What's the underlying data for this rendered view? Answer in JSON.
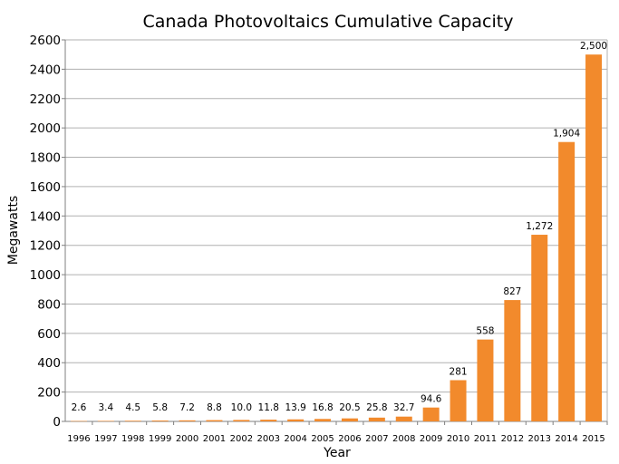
{
  "chart_data": {
    "type": "bar",
    "title": "Canada Photovoltaics Cumulative Capacity",
    "xlabel": "Year",
    "ylabel": "Megawatts",
    "ylim": [
      0,
      2600
    ],
    "yticks": [
      0,
      200,
      400,
      600,
      800,
      1000,
      1200,
      1400,
      1600,
      1800,
      2000,
      2200,
      2400,
      2600
    ],
    "grid": true,
    "categories": [
      "1996",
      "1997",
      "1998",
      "1999",
      "2000",
      "2001",
      "2002",
      "2003",
      "2004",
      "2005",
      "2006",
      "2007",
      "2008",
      "2009",
      "2010",
      "2011",
      "2012",
      "2013",
      "2014",
      "2015"
    ],
    "values": [
      2.6,
      3.4,
      4.5,
      5.8,
      7.2,
      8.8,
      10.0,
      11.8,
      13.9,
      16.8,
      20.5,
      25.8,
      32.7,
      94.6,
      281,
      558,
      827,
      1272,
      1904,
      2500
    ],
    "data_labels": [
      "2.6",
      "3.4",
      "4.5",
      "5.8",
      "7.2",
      "8.8",
      "10.0",
      "11.8",
      "13.9",
      "16.8",
      "20.5",
      "25.8",
      "32.7",
      "94.6",
      "281",
      "558",
      "827",
      "1,272",
      "1,904",
      "2,500"
    ],
    "bar_color": "#f28a2c"
  }
}
